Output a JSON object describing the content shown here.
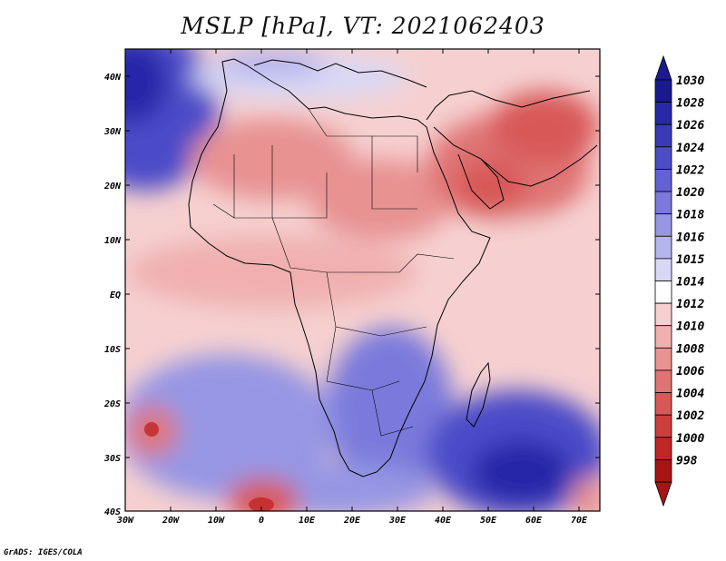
{
  "title": "MSLP [hPa], VT: 2021062403",
  "credit": "GrADS: IGES/COLA",
  "lat_ticks": [
    "40N",
    "30N",
    "20N",
    "10N",
    "EQ",
    "10S",
    "20S",
    "30S",
    "40S"
  ],
  "lon_ticks": [
    "30W",
    "20W",
    "10W",
    "0",
    "10E",
    "20E",
    "30E",
    "40E",
    "50E",
    "60E",
    "70E"
  ],
  "colorbar": {
    "levels": [
      "1030",
      "1028",
      "1026",
      "1024",
      "1022",
      "1020",
      "1018",
      "1016",
      "1015",
      "1014",
      "1012",
      "1010",
      "1008",
      "1006",
      "1004",
      "1002",
      "1000",
      "998"
    ],
    "colors": [
      "#1a1a8c",
      "#2828a8",
      "#3a3ab8",
      "#4c4cc8",
      "#6262d4",
      "#7a7adc",
      "#9696e4",
      "#b4b4ee",
      "#d8d8f6",
      "#ffffff",
      "#f6d0d0",
      "#f0b0b0",
      "#e89292",
      "#e07474",
      "#d85858",
      "#cc3e3e",
      "#c02626",
      "#a81414"
    ]
  }
}
